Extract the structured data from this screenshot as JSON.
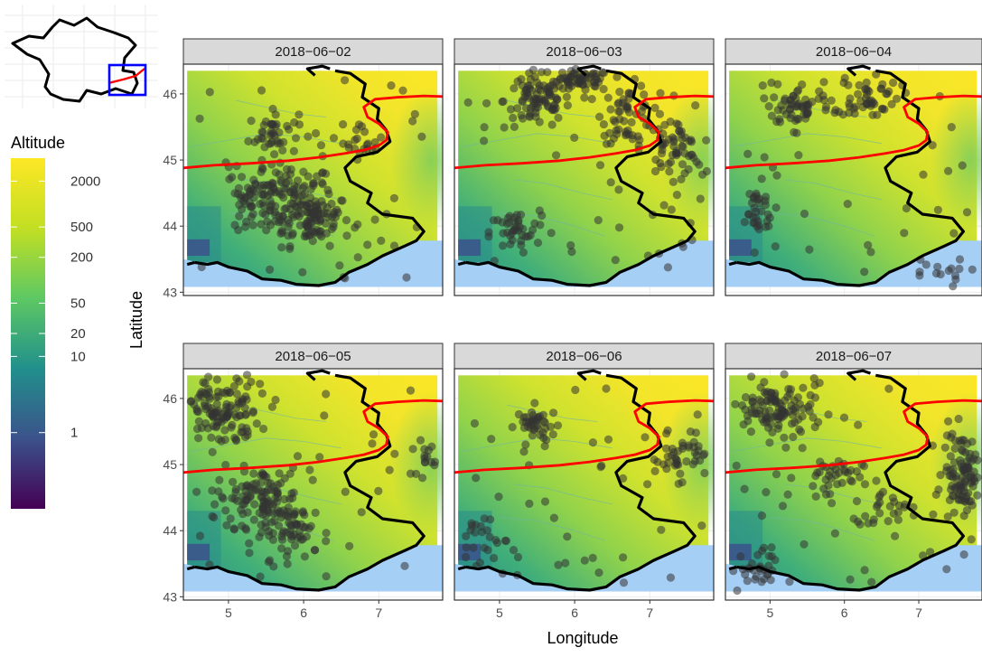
{
  "chart_data": {
    "type": "map-facets",
    "xlabel": "Longitude",
    "ylabel": "Latitude",
    "xlim": [
      4.4,
      7.85
    ],
    "ylim": [
      42.95,
      46.45
    ],
    "x_ticks": [
      5,
      6,
      7
    ],
    "y_ticks": [
      43,
      44,
      45,
      46
    ],
    "grid": true,
    "legend": {
      "title": "Altitude",
      "placement": "left",
      "scale": "log",
      "ticks": [
        "2000",
        "500",
        "200",
        "50",
        "20",
        "10",
        "1"
      ],
      "tick_values": [
        2000,
        500,
        200,
        50,
        20,
        10,
        1
      ],
      "range": [
        0.1,
        4000
      ],
      "colors": [
        "#440154",
        "#3b528b",
        "#21908c",
        "#5dc863",
        "#c2df23",
        "#fde725"
      ]
    },
    "inset": {
      "shows": "France outline with study region box",
      "region": {
        "lon": [
          4.4,
          7.85
        ],
        "lat": [
          42.95,
          46.45
        ]
      },
      "box_color": "#0000ff"
    },
    "colors": {
      "border": "#000000",
      "boundary_line": "#ff0000",
      "sea": "#a6cff5",
      "points": "#333333",
      "strip_bg": "#d9d9d9"
    },
    "facets": [
      {
        "label": "2018−06−02",
        "clusters": [
          [
            5.8,
            44.4,
            0.55,
            0.5,
            120
          ],
          [
            6.1,
            44.1,
            0.5,
            0.35,
            80
          ],
          [
            5.6,
            45.4,
            0.3,
            0.3,
            40
          ],
          [
            6.8,
            45.3,
            0.25,
            0.25,
            20
          ],
          [
            5.3,
            44.5,
            0.3,
            0.3,
            30
          ]
        ]
      },
      {
        "label": "2018−06−03",
        "clusters": [
          [
            5.5,
            45.9,
            0.4,
            0.4,
            90
          ],
          [
            6.1,
            46.2,
            0.35,
            0.15,
            60
          ],
          [
            6.7,
            45.7,
            0.3,
            0.4,
            50
          ],
          [
            7.3,
            45.2,
            0.35,
            0.4,
            60
          ],
          [
            5.2,
            43.9,
            0.3,
            0.3,
            40
          ]
        ]
      },
      {
        "label": "2018−06−04",
        "clusters": [
          [
            5.4,
            45.8,
            0.4,
            0.25,
            50
          ],
          [
            6.3,
            46.0,
            0.4,
            0.3,
            50
          ],
          [
            4.8,
            44.2,
            0.25,
            0.4,
            30
          ],
          [
            7.2,
            43.3,
            0.4,
            0.2,
            15
          ]
        ]
      },
      {
        "label": "2018−06−05",
        "clusters": [
          [
            4.9,
            45.8,
            0.45,
            0.5,
            120
          ],
          [
            5.4,
            44.5,
            0.5,
            0.4,
            110
          ],
          [
            5.9,
            44.0,
            0.4,
            0.35,
            60
          ],
          [
            7.6,
            45.1,
            0.15,
            0.25,
            15
          ]
        ]
      },
      {
        "label": "2018−06−06",
        "clusters": [
          [
            5.5,
            45.6,
            0.25,
            0.25,
            40
          ],
          [
            7.4,
            45.1,
            0.3,
            0.3,
            40
          ],
          [
            4.8,
            43.8,
            0.3,
            0.5,
            25
          ]
        ]
      },
      {
        "label": "2018−06−07",
        "clusters": [
          [
            5.1,
            45.8,
            0.55,
            0.4,
            110
          ],
          [
            7.6,
            44.9,
            0.25,
            0.55,
            110
          ],
          [
            5.8,
            44.8,
            0.4,
            0.3,
            40
          ],
          [
            4.8,
            43.4,
            0.3,
            0.3,
            30
          ],
          [
            6.5,
            44.3,
            0.3,
            0.3,
            20
          ]
        ]
      }
    ]
  }
}
